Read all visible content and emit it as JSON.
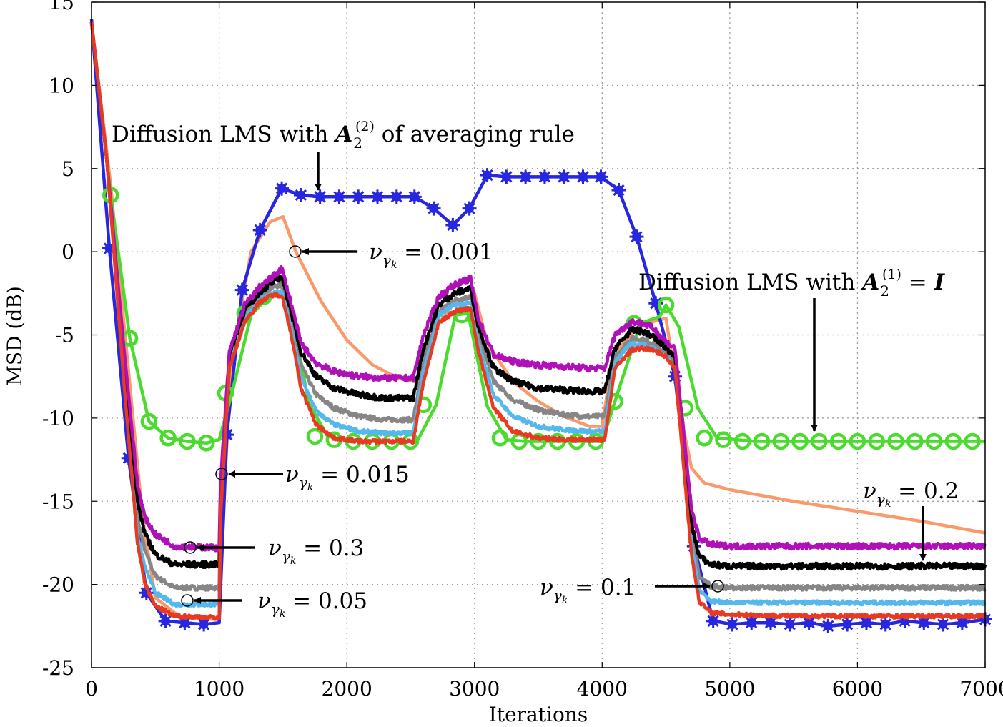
{
  "chart_data": {
    "type": "line",
    "title": "",
    "xlabel": "Iterations",
    "ylabel": "MSD (dB)",
    "xlim": [
      0,
      7000
    ],
    "ylim": [
      -25,
      15
    ],
    "xticks": [
      0,
      1000,
      2000,
      3000,
      4000,
      5000,
      6000,
      7000
    ],
    "yticks": [
      15,
      10,
      5,
      0,
      -5,
      -10,
      -15,
      -20,
      -25
    ],
    "xtick_labels": [
      "0",
      "1000",
      "2000",
      "3000",
      "4000",
      "5000",
      "6000",
      "7000"
    ],
    "ytick_labels": [
      "15",
      "10",
      "5",
      "0",
      "-5",
      "-10",
      "-15",
      "-20",
      "-25"
    ],
    "grid": true,
    "series": [
      {
        "name": "Diffusion LMS with A2(2) of averaging rule",
        "color": "#2727e0",
        "marker": "star",
        "x": [
          0,
          140,
          290,
          430,
          580,
          730,
          880,
          1000,
          1060,
          1180,
          1320,
          1490,
          1640,
          1790,
          1940,
          2090,
          2240,
          2390,
          2530,
          2680,
          2830,
          2960,
          3100,
          3250,
          3400,
          3550,
          3700,
          3850,
          3990,
          4130,
          4270,
          4420,
          4570,
          4720,
          4870,
          5020,
          5170,
          5320,
          5470,
          5620,
          5770,
          5920,
          6070,
          6220,
          6370,
          6520,
          6670,
          6820,
          7000
        ],
        "y": [
          14,
          0.2,
          -12.4,
          -20.5,
          -22.2,
          -22.3,
          -22.4,
          -22.3,
          -11,
          -2.3,
          1.3,
          3.8,
          3.4,
          3.3,
          3.3,
          3.3,
          3.3,
          3.3,
          3.3,
          2.6,
          1.6,
          2.6,
          4.6,
          4.5,
          4.5,
          4.5,
          4.5,
          4.5,
          4.5,
          3.7,
          0.9,
          -3.1,
          -7.5,
          -17.7,
          -22.2,
          -22.4,
          -22.3,
          -22.3,
          -22.4,
          -22.3,
          -22.5,
          -22.4,
          -22.3,
          -22.4,
          -22.2,
          -22.3,
          -22.4,
          -22.3,
          -22.1
        ]
      },
      {
        "name": "Diffusion LMS with A2(1) = I",
        "color": "#4bdb2e",
        "marker": "circle",
        "x": [
          0,
          150,
          300,
          450,
          600,
          750,
          900,
          1000,
          1100,
          1250,
          1400,
          1550,
          1700,
          1850,
          2000,
          2150,
          2300,
          2450,
          2550,
          2700,
          2850,
          2950,
          3100,
          3250,
          3400,
          3550,
          3700,
          3850,
          4000,
          4150,
          4300,
          4450,
          4500,
          4600,
          4750,
          4900,
          5050,
          5200,
          5350,
          5500,
          5650,
          5800,
          5950,
          6100,
          6250,
          6400,
          6550,
          6700,
          6850,
          7000
        ],
        "y": [
          13.8,
          3.4,
          -5.2,
          -10.2,
          -11.2,
          -11.4,
          -11.5,
          -11.3,
          -8.5,
          -3.8,
          -2.6,
          -2.8,
          -9.1,
          -11.1,
          -11.3,
          -11.4,
          -11.4,
          -11.4,
          -11.4,
          -9.2,
          -3.8,
          -3.7,
          -9.3,
          -11.3,
          -11.4,
          -11.4,
          -11.4,
          -11.4,
          -11.4,
          -7.8,
          -4.3,
          -3.9,
          -3.2,
          -4.5,
          -9.4,
          -11.2,
          -11.3,
          -11.4,
          -11.4,
          -11.4,
          -11.4,
          -11.4,
          -11.4,
          -11.4,
          -11.4,
          -11.4,
          -11.4,
          -11.4,
          -11.4,
          -11.4
        ],
        "marker_x": [
          150,
          300,
          450,
          600,
          750,
          900,
          1050,
          1200,
          1350,
          1750,
          1900,
          2050,
          2200,
          2350,
          2500,
          2600,
          2900,
          3200,
          3350,
          3500,
          3650,
          3800,
          3950,
          4100,
          4250,
          4500,
          4650,
          4800,
          4950,
          5100,
          5250,
          5400,
          5550,
          5700,
          5850,
          6000,
          6150,
          6300,
          6450,
          6600,
          6750,
          6900
        ],
        "marker_y": [
          3.4,
          -5.2,
          -10.2,
          -11.2,
          -11.4,
          -11.5,
          -8.5,
          -3.7,
          -2.7,
          -11.1,
          -11.3,
          -11.4,
          -11.4,
          -11.4,
          -11.4,
          -9.2,
          -3.8,
          -11.2,
          -11.4,
          -11.4,
          -11.4,
          -11.4,
          -11.4,
          -9.0,
          -4.3,
          -3.2,
          -9.4,
          -11.2,
          -11.3,
          -11.4,
          -11.4,
          -11.4,
          -11.4,
          -11.4,
          -11.4,
          -11.4,
          -11.4,
          -11.4,
          -11.4,
          -11.4,
          -11.4,
          -11.4
        ]
      },
      {
        "name": "nu = 0.001",
        "color": "#f99a6c",
        "marker": "none",
        "x": [
          0,
          150,
          300,
          400,
          500,
          700,
          1000,
          1010,
          1100,
          1250,
          1400,
          1500,
          1600,
          1800,
          2000,
          2200,
          2400,
          2600,
          2700,
          2850,
          3000,
          3100,
          3300,
          3500,
          3700,
          3900,
          4000,
          4050,
          4150,
          4300,
          4500,
          4560,
          4620,
          4700,
          4800,
          5000,
          5500,
          6000,
          6500,
          7000
        ],
        "y": [
          13.8,
          4,
          -8,
          -16,
          -20.8,
          -22,
          -22.1,
          -18,
          -6.5,
          0,
          1.8,
          2.1,
          0,
          -3,
          -5.3,
          -6.8,
          -7.6,
          -7.9,
          -4.5,
          -3,
          -2.5,
          -5.5,
          -7.8,
          -9,
          -9.9,
          -10.5,
          -10.5,
          -8,
          -5.6,
          -4.4,
          -4.0,
          -7,
          -10,
          -13,
          -13.9,
          -14.3,
          -15.0,
          -15.6,
          -16.2,
          -16.9
        ]
      },
      {
        "name": "nu = 0.3",
        "color": "#b010b8",
        "marker": "none",
        "noise": 0.18,
        "x": [
          0,
          120,
          250,
          360,
          420,
          500,
          650,
          1000,
          1010,
          1080,
          1200,
          1320,
          1420,
          1490,
          1560,
          1640,
          1760,
          1900,
          2100,
          2300,
          2520,
          2600,
          2720,
          2840,
          2970,
          3030,
          3150,
          3300,
          3500,
          3700,
          3900,
          4020,
          4100,
          4230,
          4320,
          4400,
          4500,
          4570,
          4640,
          4700,
          4760,
          4850,
          5000,
          5500,
          6000,
          6500,
          7000
        ],
        "y": [
          13.8,
          5.5,
          -5.5,
          -14,
          -16,
          -17,
          -17.7,
          -17.8,
          -14,
          -6,
          -3.2,
          -2.1,
          -1.5,
          -1.0,
          -3,
          -5.5,
          -6.7,
          -7.2,
          -7.5,
          -7.6,
          -7.6,
          -5.0,
          -2.7,
          -2.0,
          -1.6,
          -4,
          -6.2,
          -6.6,
          -6.8,
          -6.9,
          -7.0,
          -7.0,
          -5.0,
          -4.2,
          -4.3,
          -4.6,
          -5.4,
          -5.8,
          -11,
          -15.5,
          -17.2,
          -17.6,
          -17.7,
          -17.7,
          -17.7,
          -17.7,
          -17.7
        ]
      },
      {
        "name": "nu = 0.2",
        "color": "#000000",
        "marker": "none",
        "noise": 0.18,
        "x": [
          0,
          120,
          250,
          360,
          420,
          500,
          650,
          1000,
          1010,
          1080,
          1200,
          1320,
          1420,
          1490,
          1560,
          1640,
          1760,
          1900,
          2100,
          2300,
          2520,
          2600,
          2720,
          2840,
          2970,
          3030,
          3150,
          3300,
          3500,
          3700,
          3900,
          4020,
          4100,
          4230,
          4320,
          4400,
          4500,
          4570,
          4640,
          4700,
          4760,
          4850,
          5000,
          5500,
          6000,
          6500,
          7000
        ],
        "y": [
          13.8,
          5.5,
          -6,
          -15,
          -17,
          -18.2,
          -18.8,
          -18.8,
          -14.5,
          -6.2,
          -3.5,
          -2.4,
          -1.8,
          -1.5,
          -3.5,
          -6,
          -7.5,
          -8.2,
          -8.6,
          -8.8,
          -8.8,
          -5.8,
          -3.2,
          -2.5,
          -2.2,
          -4.5,
          -7.0,
          -7.8,
          -8.2,
          -8.3,
          -8.4,
          -8.4,
          -5.8,
          -4.7,
          -4.8,
          -5.1,
          -5.8,
          -6.2,
          -11.5,
          -16.3,
          -18.3,
          -18.8,
          -18.9,
          -18.9,
          -18.9,
          -18.9,
          -18.9
        ]
      },
      {
        "name": "nu = 0.1",
        "color": "#868686",
        "marker": "none",
        "noise": 0.14,
        "x": [
          0,
          120,
          250,
          360,
          420,
          500,
          650,
          1000,
          1010,
          1080,
          1200,
          1320,
          1420,
          1490,
          1560,
          1640,
          1760,
          1900,
          2100,
          2300,
          2520,
          2600,
          2720,
          2840,
          2970,
          3030,
          3150,
          3300,
          3500,
          3700,
          3900,
          4020,
          4100,
          4230,
          4320,
          4400,
          4500,
          4570,
          4640,
          4700,
          4760,
          4850,
          5000,
          5500,
          6000,
          6500,
          7000
        ],
        "y": [
          13.8,
          5.5,
          -6.5,
          -16,
          -18,
          -19.5,
          -20.2,
          -20.2,
          -15,
          -6.5,
          -3.8,
          -2.6,
          -2.1,
          -2.0,
          -4,
          -6.8,
          -8.6,
          -9.4,
          -9.9,
          -10.1,
          -10.1,
          -6.6,
          -3.6,
          -2.9,
          -2.7,
          -5,
          -7.8,
          -8.9,
          -9.5,
          -9.8,
          -9.9,
          -9.9,
          -6.3,
          -5.2,
          -5.3,
          -5.5,
          -6.1,
          -6.6,
          -12,
          -17,
          -19.5,
          -20.1,
          -20.2,
          -20.2,
          -20.2,
          -20.2,
          -20.2
        ]
      },
      {
        "name": "nu = 0.05",
        "color": "#55b8ec",
        "marker": "none",
        "noise": 0.12,
        "x": [
          0,
          120,
          250,
          360,
          420,
          500,
          650,
          1000,
          1010,
          1080,
          1200,
          1320,
          1420,
          1490,
          1560,
          1640,
          1760,
          1900,
          2100,
          2300,
          2520,
          2600,
          2720,
          2840,
          2970,
          3030,
          3150,
          3300,
          3500,
          3700,
          3900,
          4020,
          4100,
          4230,
          4320,
          4400,
          4500,
          4570,
          4640,
          4700,
          4760,
          4850,
          5000,
          5500,
          6000,
          6500,
          7000
        ],
        "y": [
          13.8,
          5.5,
          -7,
          -17,
          -19,
          -20.5,
          -21.2,
          -21.2,
          -15.5,
          -6.8,
          -4.0,
          -2.9,
          -2.5,
          -2.4,
          -4.5,
          -7.5,
          -9.6,
          -10.4,
          -10.8,
          -10.9,
          -10.9,
          -7.2,
          -3.8,
          -3.2,
          -3.1,
          -5.5,
          -8.6,
          -9.9,
          -10.5,
          -10.7,
          -10.8,
          -10.8,
          -6.6,
          -5.5,
          -5.6,
          -5.8,
          -6.3,
          -6.9,
          -12.5,
          -17.6,
          -20.3,
          -21.0,
          -21.1,
          -21.1,
          -21.1,
          -21.1,
          -21.1
        ]
      },
      {
        "name": "nu = 0.015",
        "color": "#e83a22",
        "marker": "none",
        "noise": 0.12,
        "x": [
          0,
          120,
          250,
          360,
          420,
          500,
          650,
          1000,
          1010,
          1080,
          1200,
          1320,
          1420,
          1490,
          1560,
          1640,
          1760,
          1900,
          2100,
          2300,
          2520,
          2600,
          2720,
          2840,
          2970,
          3030,
          3150,
          3300,
          3500,
          3700,
          3900,
          4020,
          4100,
          4230,
          4320,
          4400,
          4500,
          4570,
          4640,
          4700,
          4760,
          4850,
          5000,
          5500,
          6000,
          6500,
          7000
        ],
        "y": [
          13.8,
          5.5,
          -7.5,
          -17.5,
          -20,
          -21.3,
          -21.9,
          -22.0,
          -16,
          -7,
          -4.2,
          -3.0,
          -2.6,
          -2.6,
          -4.8,
          -8.2,
          -10.4,
          -11.2,
          -11.4,
          -11.4,
          -11.4,
          -7.8,
          -4.3,
          -3.6,
          -3.4,
          -6,
          -9.4,
          -10.8,
          -11.2,
          -11.3,
          -11.3,
          -11.3,
          -7.0,
          -5.9,
          -5.8,
          -5.9,
          -6.3,
          -7.0,
          -13,
          -18.2,
          -21.0,
          -21.7,
          -21.8,
          -21.9,
          -21.9,
          -21.9,
          -21.9
        ]
      }
    ],
    "annotations": {
      "averaging_label_pre": "Diffusion LMS with ",
      "averaging_label_sym": "A",
      "averaging_label_sub": "2",
      "averaging_label_sup": "(2)",
      "averaging_label_post": " of averaging rule",
      "identity_label_pre": "Diffusion LMS with ",
      "identity_label_sym": "A",
      "identity_label_sub": "2",
      "identity_label_sup": "(1)",
      "identity_label_eq": " = ",
      "identity_label_rhs": "I",
      "nu_symbol": "ν",
      "gamma_symbol": "γ",
      "k_symbol": "k",
      "eq": " = ",
      "nu_0001": "0.001",
      "nu_0015": "0.015",
      "nu_03": "0.3",
      "nu_005": "0.05",
      "nu_02": "0.2",
      "nu_01": "0.1"
    }
  }
}
